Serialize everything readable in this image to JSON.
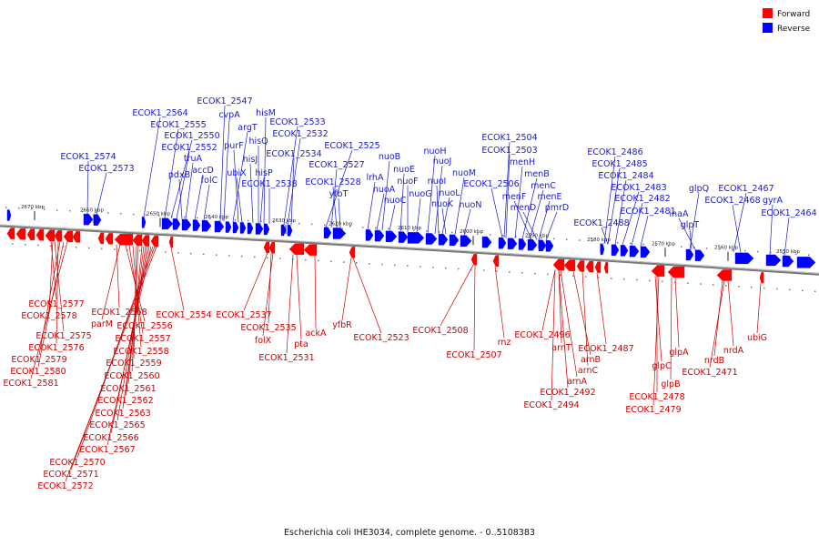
{
  "legend": {
    "items": [
      {
        "label": "Forward",
        "color": "#ff0000"
      },
      {
        "label": "Reverse",
        "color": "#0000ff"
      }
    ]
  },
  "caption": "Escherichia coli IHE3034, complete genome. - 0..5108383",
  "colors": {
    "forward": "#ff0000",
    "reverse": "#0000ff",
    "label_forward": "#cc0000",
    "label_reverse": "#1a1acc"
  },
  "ticks": [
    "2670 kbp",
    "2660 kbp",
    "2650 kbp",
    "2640 kbp",
    "2630 kbp",
    "2620 kbp",
    "2610 kbp",
    "2600 kbp",
    "2590 kbp",
    "2580 kbp",
    "2570 kbp",
    "2560 kbp",
    "2550 kbp"
  ],
  "reverse_labels": [
    "ECOK1_2574",
    "ECOK1_2573",
    "ECOK1_2564",
    "ECOK1_2555",
    "ECOK1_2550",
    "ECOK1_2552",
    "truA",
    "pdxB",
    "accD",
    "folC",
    "ECOK1_2547",
    "cvpA",
    "argT",
    "purF",
    "ubiX",
    "hisM",
    "hisQ",
    "hisJ",
    "hisP",
    "ECOK1_2538",
    "ECOK1_2533",
    "ECOK1_2532",
    "ECOK1_2534",
    "ECOK1_2525",
    "ECOK1_2527",
    "ECOK1_2528",
    "yfbT",
    "lrhA",
    "nuoA",
    "nuoB",
    "nuoC",
    "nuoE",
    "nuoF",
    "nuoG",
    "nuoH",
    "nuoJ",
    "nuoI",
    "nuoL",
    "nuoK",
    "nuoM",
    "nuoN",
    "ECOK1_2504",
    "ECOK1_2503",
    "menH",
    "menB",
    "ECOK1_2506",
    "menC",
    "menF",
    "menE",
    "menD",
    "pmrD",
    "ECOK1_2486",
    "ECOK1_2485",
    "ECOK1_2484",
    "ECOK1_2483",
    "ECOK1_2482",
    "ECOK1_2481",
    "ECOK1_2488",
    "glpQ",
    "inaA",
    "glpT",
    "ECOK1_2467",
    "ECOK1_2468",
    "gyrA",
    "ECOK1_2464"
  ],
  "forward_labels": [
    "ECOK1_2577",
    "ECOK1_2578",
    "ECOK1_2575",
    "ECOK1_2576",
    "ECOK1_2579",
    "ECOK1_2580",
    "ECOK1_2581",
    "ECOK1_2568",
    "parM",
    "ECOK1_2556",
    "ECOK1_2557",
    "ECOK1_2558",
    "ECOK1_2559",
    "ECOK1_2560",
    "ECOK1_2561",
    "ECOK1_2562",
    "ECOK1_2563",
    "ECOK1_2565",
    "ECOK1_2566",
    "ECOK1_2567",
    "ECOK1_2570",
    "ECOK1_2571",
    "ECOK1_2572",
    "ECOK1_2554",
    "ECOK1_2537",
    "ECOK1_2535",
    "folX",
    "ECOK1_2531",
    "pta",
    "ackA",
    "yfbR",
    "ECOK1_2523",
    "ECOK1_2508",
    "ECOK1_2507",
    "rnz",
    "ECOK1_2496",
    "arnT",
    "arnA",
    "arnB",
    "arnC",
    "ECOK1_2492",
    "ECOK1_2494",
    "ECOK1_2487",
    "glpA",
    "glpC",
    "glpB",
    "ECOK1_2478",
    "ECOK1_2479",
    "nrdB",
    "nrdA",
    "ECOK1_2471",
    "ubiG"
  ]
}
